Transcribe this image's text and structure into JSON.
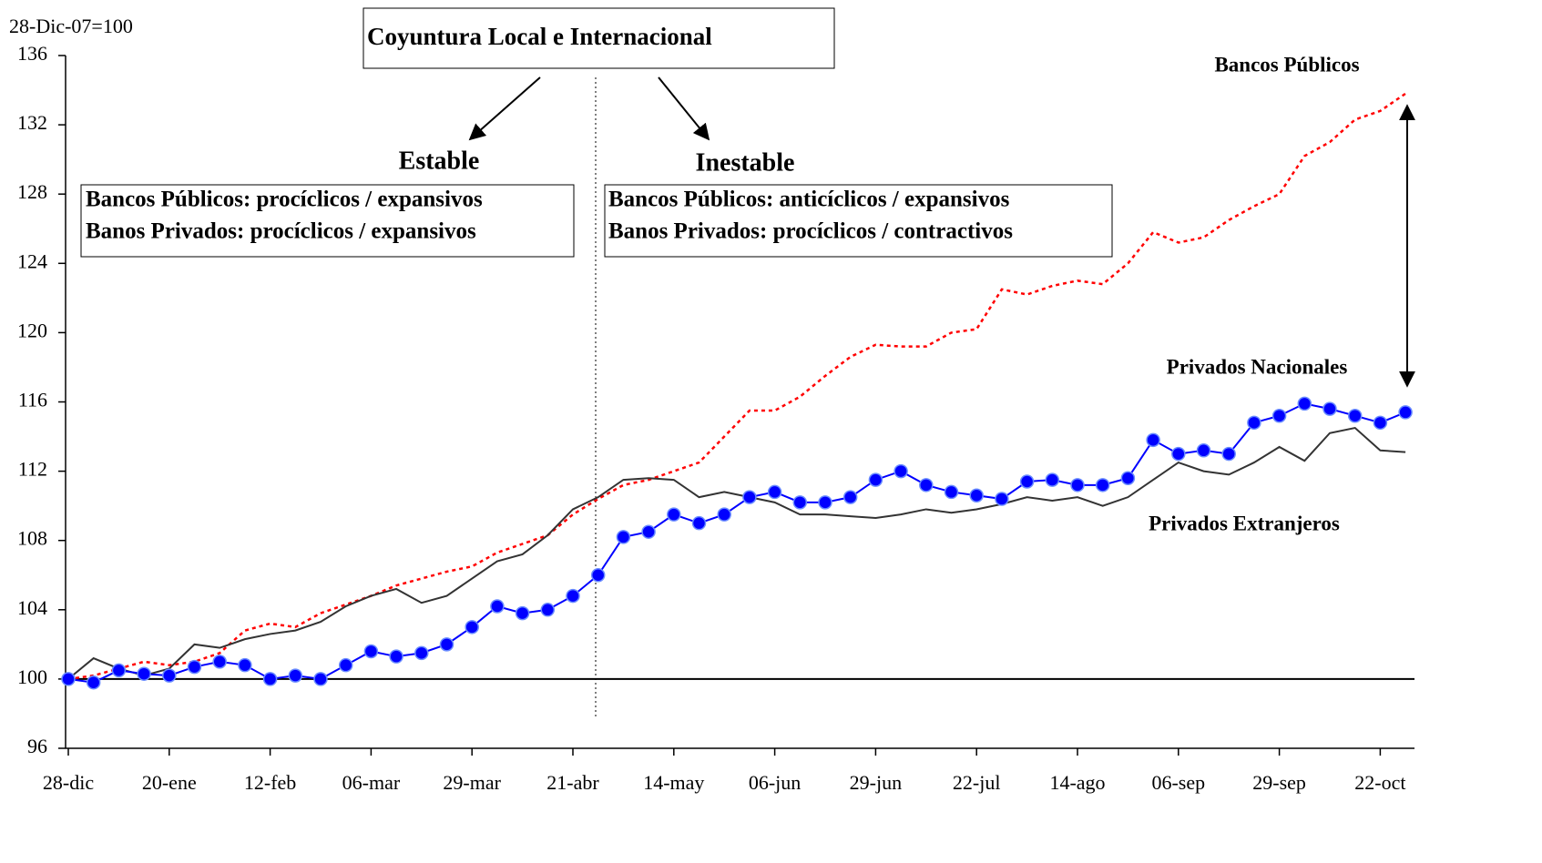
{
  "chart_data": {
    "type": "line",
    "y_label": "28-Dic-07=100",
    "title": "Coyuntura Local e Internacional",
    "regimes": [
      {
        "label": "Estable",
        "lines": [
          "Bancos Públicos: procíclicos / expansivos",
          "Banos Privados: procíclicos / expansivos"
        ]
      },
      {
        "label": "Inestable",
        "lines": [
          "Bancos Públicos: anticíclicos / expansivos",
          "Banos Privados: procíclicos / contractivos"
        ]
      }
    ],
    "categories": [
      "28-dic",
      null,
      null,
      null,
      "20-ene",
      null,
      null,
      null,
      "12-feb",
      null,
      null,
      null,
      "06-mar",
      null,
      null,
      null,
      "29-mar",
      null,
      null,
      null,
      "21-abr",
      null,
      null,
      null,
      "14-may",
      null,
      null,
      null,
      "06-jun",
      null,
      null,
      null,
      "29-jun",
      null,
      null,
      null,
      "22-jul",
      null,
      null,
      null,
      "14-ago",
      null,
      null,
      null,
      "06-sep",
      null,
      null,
      null,
      "29-sep",
      null,
      null,
      null,
      "22-oct",
      null
    ],
    "ylim": [
      96,
      136
    ],
    "yticks": [
      96,
      100,
      104,
      108,
      112,
      116,
      120,
      124,
      128,
      132,
      136
    ],
    "reference_line": 100,
    "series": [
      {
        "name": "Bancos Públicos",
        "color": "#ff0000",
        "line_style": "dotted",
        "markers": false,
        "values": [
          100,
          100.2,
          100.6,
          101,
          100.8,
          101,
          101.5,
          102.8,
          103.2,
          103,
          103.8,
          104.3,
          104.8,
          105.4,
          105.8,
          106.2,
          106.5,
          107.3,
          107.8,
          108.3,
          109.5,
          110.4,
          111.2,
          111.5,
          112,
          112.5,
          114,
          115.5,
          115.5,
          116.3,
          117.5,
          118.6,
          119.3,
          119.2,
          119.2,
          120,
          120.2,
          122.5,
          122.2,
          122.7,
          123,
          122.8,
          124,
          125.8,
          125.2,
          125.5,
          126.5,
          127.3,
          128,
          130.2,
          131,
          132.3,
          132.8,
          133.8
        ]
      },
      {
        "name": "Privados Extranjeros",
        "color": "#333333",
        "line_style": "solid",
        "markers": false,
        "values": [
          100,
          101.2,
          100.6,
          100.2,
          100.6,
          102,
          101.8,
          102.3,
          102.6,
          102.8,
          103.3,
          104.2,
          104.8,
          105.2,
          104.4,
          104.8,
          105.8,
          106.8,
          107.2,
          108.3,
          109.8,
          110.5,
          111.5,
          111.6,
          111.5,
          110.5,
          110.8,
          110.5,
          110.2,
          109.5,
          109.5,
          109.4,
          109.3,
          109.5,
          109.8,
          109.6,
          109.8,
          110.1,
          110.5,
          110.3,
          110.5,
          110,
          110.5,
          111.5,
          112.5,
          112,
          111.8,
          112.5,
          113.4,
          112.6,
          114.2,
          114.5,
          113.2,
          113.1
        ]
      },
      {
        "name": "Privados Nacionales",
        "color": "#0000ff",
        "line_style": "solid",
        "markers": true,
        "values": [
          100,
          99.8,
          100.5,
          100.3,
          100.2,
          100.7,
          101,
          100.8,
          100,
          100.2,
          100,
          100.8,
          101.6,
          101.3,
          101.5,
          102,
          103,
          104.2,
          103.8,
          104,
          104.8,
          106,
          108.2,
          108.5,
          109.5,
          109,
          109.5,
          110.5,
          110.8,
          110.2,
          110.2,
          110.5,
          111.5,
          112,
          111.2,
          110.8,
          110.6,
          110.4,
          111.4,
          111.5,
          111.2,
          111.2,
          111.6,
          113.8,
          113,
          113.2,
          113,
          114.8,
          115.2,
          115.9,
          115.6,
          115.2,
          114.8,
          115.4
        ]
      }
    ]
  }
}
